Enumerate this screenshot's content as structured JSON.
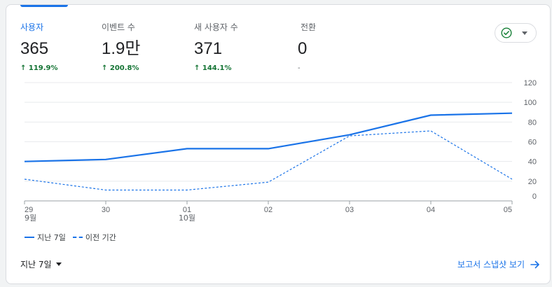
{
  "metrics": [
    {
      "label": "사용자",
      "value": "365",
      "change": "119.9%",
      "direction": "up",
      "active": true
    },
    {
      "label": "이벤트 수",
      "value": "1.9만",
      "change": "200.8%",
      "direction": "up",
      "active": false
    },
    {
      "label": "새 사용자 수",
      "value": "371",
      "change": "144.1%",
      "direction": "up",
      "active": false
    },
    {
      "label": "전환",
      "value": "0",
      "change": "-",
      "direction": "none",
      "active": false
    }
  ],
  "compare_button": {
    "icon": "check-circle-icon",
    "dropdown_icon": "caret-down-icon"
  },
  "legend": {
    "current": "지난 7일",
    "previous": "이전 기간"
  },
  "footer": {
    "date_range": "지난 7일",
    "report_link": "보고서 스냅샷 보기"
  },
  "colors": {
    "accent": "#1a73e8",
    "positive": "#137333",
    "muted": "#5f6368"
  },
  "chart_data": {
    "type": "line",
    "categories": [
      "29\n9월",
      "30",
      "01\n10월",
      "02",
      "03",
      "04",
      "05"
    ],
    "x_ticks": [
      {
        "top": "29",
        "bottom": "9월"
      },
      {
        "top": "30",
        "bottom": ""
      },
      {
        "top": "01",
        "bottom": "10월"
      },
      {
        "top": "02",
        "bottom": ""
      },
      {
        "top": "03",
        "bottom": ""
      },
      {
        "top": "04",
        "bottom": ""
      },
      {
        "top": "05",
        "bottom": ""
      }
    ],
    "y_ticks": [
      0,
      20,
      40,
      60,
      80,
      100,
      120
    ],
    "ylim": [
      0,
      120
    ],
    "series": [
      {
        "name": "지난 7일",
        "style": "solid",
        "values": [
          40,
          42,
          53,
          53,
          67,
          87,
          89
        ]
      },
      {
        "name": "이전 기간",
        "style": "dashed",
        "values": [
          22,
          11,
          11,
          19,
          66,
          71,
          22
        ]
      }
    ],
    "grid": true,
    "legend_position": "bottom-left",
    "y_axis_side": "right"
  }
}
